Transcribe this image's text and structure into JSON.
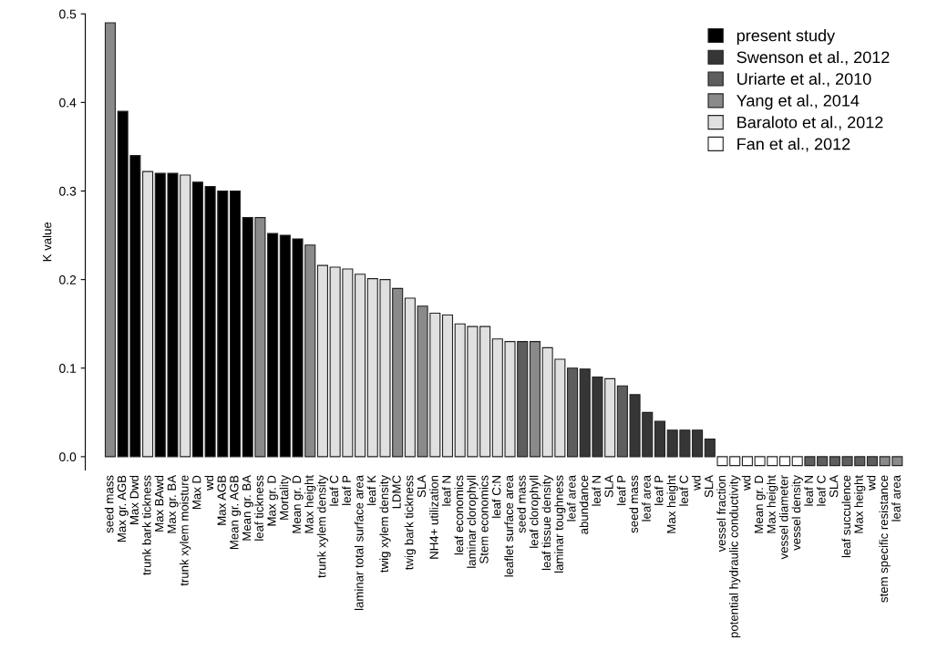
{
  "chart_data": {
    "type": "bar",
    "ylabel": "K value",
    "categories": [
      "seed mass",
      "Max gr. AGB",
      "Max Dwd",
      "trunk bark tickness",
      "Max BAwd",
      "Max gr. BA",
      "trunk xylem moisture",
      "Max D",
      "wd",
      "Max AGB",
      "Mean gr. AGB",
      "Mean gr. BA",
      "leaf tickness",
      "Max gr. D",
      "Mortality",
      "Mean gr. D",
      "Max height",
      "trunk xylem density",
      "leaf C",
      "leaf P",
      "laminar total surface area",
      "leaf K",
      "twig xylem density",
      "LDMC",
      "twig bark tickness",
      "SLA",
      "NH4+ utilization",
      "leaf N",
      "leaf economics",
      "laminar clorophyll",
      "Stem economics",
      "leaf C:N",
      "leaflet surface area",
      "seed mass",
      "leaf clorophyll",
      "leaf tissue density",
      "laminar toughness",
      "leaf area",
      "abundance",
      "leaf N",
      "SLA",
      "leaf P",
      "seed mass",
      "leaf area",
      "leaf P",
      "Max height",
      "leaf C",
      "wd",
      "SLA",
      "vessel fraction",
      "potential hydraulic conductivity",
      "wd",
      "Mean gr. D",
      "Max height",
      "vessel diameter",
      "vessel density",
      "leaf N",
      "leaf C",
      "SLA",
      "leaf succulence",
      "Max height",
      "wd",
      "stem specific resistance",
      "leaf area"
    ],
    "series": [
      {
        "name": "present study",
        "color": "#000000",
        "values": [
          null,
          0.39,
          0.34,
          null,
          0.32,
          0.32,
          null,
          0.31,
          0.305,
          0.3,
          0.3,
          0.27,
          null,
          0.252,
          0.25,
          0.246,
          null,
          null,
          null,
          null,
          null,
          null,
          null,
          null,
          null,
          null,
          null,
          null,
          null,
          null,
          null,
          null,
          null,
          null,
          null,
          null,
          null,
          null,
          null,
          null,
          null,
          null,
          null,
          null,
          null,
          null,
          null,
          null,
          null,
          null,
          null,
          null,
          null,
          null,
          null,
          null,
          null,
          null,
          null,
          null,
          null,
          null,
          null,
          null
        ]
      },
      {
        "name": "Swenson et al., 2012",
        "color": "#363636",
        "values": [
          null,
          null,
          null,
          null,
          null,
          null,
          null,
          null,
          null,
          null,
          null,
          null,
          null,
          null,
          null,
          null,
          null,
          null,
          null,
          null,
          null,
          null,
          null,
          null,
          null,
          null,
          null,
          null,
          null,
          null,
          null,
          null,
          null,
          null,
          null,
          null,
          null,
          null,
          0.099,
          0.09,
          null,
          null,
          0.07,
          0.05,
          0.04,
          0.03,
          0.03,
          0.03,
          0.02,
          null,
          null,
          null,
          null,
          null,
          null,
          null,
          null,
          null,
          null,
          null,
          null,
          null,
          null,
          null
        ]
      },
      {
        "name": "Uriarte et al., 2010",
        "color": "#5e5e5e",
        "values": [
          null,
          null,
          null,
          null,
          null,
          null,
          null,
          null,
          null,
          null,
          null,
          null,
          null,
          null,
          null,
          null,
          null,
          null,
          null,
          null,
          null,
          null,
          null,
          null,
          null,
          null,
          null,
          null,
          null,
          null,
          null,
          null,
          null,
          0.13,
          null,
          null,
          null,
          0.1,
          null,
          null,
          null,
          0.08,
          null,
          null,
          null,
          null,
          null,
          null,
          null,
          null,
          null,
          null,
          null,
          null,
          null,
          null,
          -0.01,
          -0.01,
          -0.01,
          -0.01,
          -0.01,
          -0.01,
          null,
          null
        ]
      },
      {
        "name": "Yang et al., 2014",
        "color": "#8a8a8a",
        "values": [
          0.49,
          null,
          null,
          null,
          null,
          null,
          null,
          null,
          null,
          null,
          null,
          null,
          0.27,
          null,
          null,
          null,
          0.239,
          null,
          null,
          null,
          null,
          null,
          null,
          0.19,
          null,
          0.17,
          null,
          null,
          null,
          null,
          null,
          null,
          null,
          null,
          0.13,
          null,
          null,
          null,
          null,
          null,
          null,
          null,
          null,
          null,
          null,
          null,
          null,
          null,
          null,
          null,
          null,
          null,
          null,
          null,
          null,
          null,
          null,
          null,
          null,
          null,
          null,
          null,
          -0.01,
          -0.01
        ]
      },
      {
        "name": "Baraloto et al., 2012",
        "color": "#e0e0e0",
        "values": [
          null,
          null,
          null,
          0.322,
          null,
          null,
          0.318,
          null,
          null,
          null,
          null,
          null,
          null,
          null,
          null,
          null,
          null,
          0.216,
          0.214,
          0.212,
          0.206,
          0.201,
          0.2,
          null,
          0.179,
          null,
          0.162,
          0.16,
          0.15,
          0.147,
          0.147,
          0.133,
          0.13,
          null,
          null,
          0.123,
          0.11,
          null,
          null,
          null,
          0.088,
          null,
          null,
          null,
          null,
          null,
          null,
          null,
          null,
          null,
          null,
          null,
          null,
          null,
          null,
          null,
          null,
          null,
          null,
          null,
          null,
          null,
          null,
          null
        ]
      },
      {
        "name": "Fan et al., 2012",
        "color": "#ffffff",
        "values": [
          null,
          null,
          null,
          null,
          null,
          null,
          null,
          null,
          null,
          null,
          null,
          null,
          null,
          null,
          null,
          null,
          null,
          null,
          null,
          null,
          null,
          null,
          null,
          null,
          null,
          null,
          null,
          null,
          null,
          null,
          null,
          null,
          null,
          null,
          null,
          null,
          null,
          null,
          null,
          null,
          null,
          null,
          null,
          null,
          null,
          null,
          null,
          null,
          null,
          -0.01,
          -0.01,
          -0.01,
          -0.01,
          -0.01,
          -0.01,
          -0.01,
          null,
          null,
          null,
          null,
          null,
          null,
          null,
          null
        ]
      }
    ],
    "ylim": [
      -0.015,
      0.5
    ],
    "yticks": [
      {
        "value": 0,
        "label": "0.0"
      },
      0.1,
      0.2,
      0.3,
      0.4,
      0.5
    ],
    "grid": false,
    "legend": "top right"
  }
}
